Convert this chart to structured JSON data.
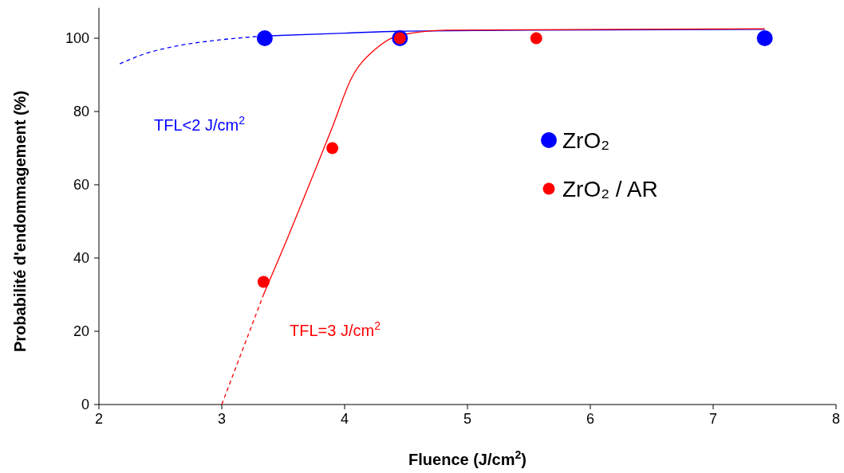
{
  "chart_data": {
    "type": "scatter",
    "xlabel": "Fluence (J/cm$^{2}$)",
    "ylabel": "Probabilité d'endommagement (%)",
    "xlim": [
      2,
      8
    ],
    "xticks": [
      2,
      3,
      4,
      5,
      6,
      7,
      8
    ],
    "ylim": [
      0,
      108.3
    ],
    "yticks": [
      0,
      20,
      40,
      60,
      80,
      100
    ],
    "grid": false,
    "legend": "right",
    "annotations": [
      "TFL<2 J/cm$^{2}$",
      "TFL=3 J/cm$^{2}$"
    ],
    "series": [
      {
        "type": "line",
        "color": "#0000ff",
        "line_style": "dashed",
        "marker": "none",
        "x": [
          2.17,
          2.36,
          2.62,
          3.0,
          3.34
        ],
        "values": [
          93,
          95.6,
          97.8,
          99.6,
          100.6
        ]
      },
      {
        "type": "line",
        "color": "#0000ff",
        "line_style": "solid",
        "marker": "none",
        "x": [
          3.34,
          4.0,
          4.45,
          5.5,
          7.42
        ],
        "values": [
          100.6,
          101.4,
          101.9,
          102.2,
          102.4
        ]
      },
      {
        "type": "line",
        "color": "#ff0000",
        "line_style": "dashed",
        "marker": "none",
        "x": [
          3.0,
          3.34
        ],
        "values": [
          0,
          30
        ]
      },
      {
        "type": "line",
        "color": "#ff0000",
        "line_style": "solid",
        "marker": "none",
        "x": [
          3.34,
          3.53,
          3.73,
          3.9,
          4.05,
          4.25,
          4.44,
          4.83,
          7.42
        ],
        "values": [
          30,
          45,
          61.5,
          75.7,
          88.7,
          97,
          100.7,
          102.2,
          102.6
        ]
      },
      {
        "name": "ZrO₂",
        "color": "#0000ff",
        "marker": "circle",
        "x": [
          3.35,
          4.45,
          7.42
        ],
        "values": [
          100,
          100,
          100
        ]
      },
      {
        "name": "ZrO₂ / AR",
        "color": "#ff0000",
        "marker": "circle",
        "x": [
          3.34,
          3.9,
          4.45,
          5.56
        ],
        "values": [
          33.5,
          70,
          100,
          100
        ]
      }
    ]
  }
}
